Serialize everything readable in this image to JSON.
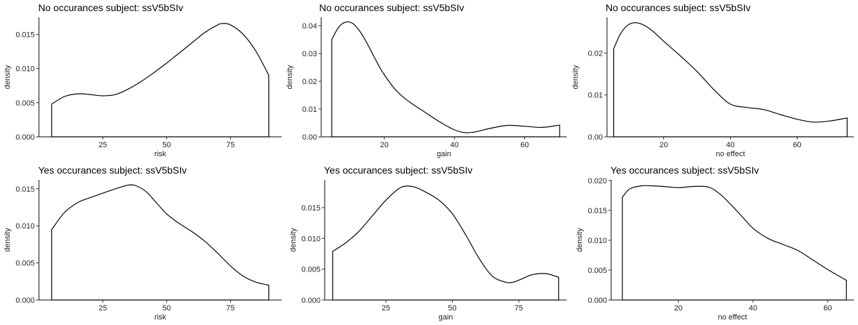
{
  "chart_data": [
    {
      "type": "area",
      "title": "No occurances subject:  ssV5bSIv",
      "xlabel": "risk",
      "ylabel": "density",
      "xlim": [
        0,
        95
      ],
      "ylim": [
        0,
        0.0175
      ],
      "xticks": [
        25,
        50,
        75
      ],
      "xtick_labels": [
        "25",
        "50",
        "75"
      ],
      "yticks": [
        0,
        0.005,
        0.01,
        0.015
      ],
      "ytick_labels": [
        "0.000",
        "0.005",
        "0.010",
        "0.015"
      ],
      "x": [
        5,
        10,
        15,
        20,
        25,
        30,
        35,
        40,
        45,
        50,
        55,
        60,
        65,
        70,
        72,
        75,
        80,
        85,
        90
      ],
      "y": [
        0.0048,
        0.0059,
        0.0063,
        0.0062,
        0.006,
        0.0062,
        0.007,
        0.0081,
        0.0094,
        0.0108,
        0.0123,
        0.0138,
        0.0153,
        0.0164,
        0.0166,
        0.0164,
        0.015,
        0.0125,
        0.009
      ],
      "grid": false,
      "legend": "none"
    },
    {
      "type": "area",
      "title": "No occurances subject:  ssV5bSIv",
      "xlabel": "gain",
      "ylabel": "density",
      "xlim": [
        2,
        72
      ],
      "ylim": [
        0,
        0.043
      ],
      "xticks": [
        20,
        40,
        60
      ],
      "xtick_labels": [
        "20",
        "40",
        "60"
      ],
      "yticks": [
        0,
        0.01,
        0.02,
        0.03,
        0.04
      ],
      "ytick_labels": [
        "0.00",
        "0.01",
        "0.02",
        "0.03",
        "0.04"
      ],
      "x": [
        5,
        7,
        9,
        11,
        13,
        15,
        17,
        19,
        21,
        23,
        25,
        28,
        32,
        36,
        40,
        43,
        46,
        50,
        55,
        60,
        65,
        70
      ],
      "y": [
        0.035,
        0.0395,
        0.0413,
        0.0408,
        0.038,
        0.0338,
        0.029,
        0.0243,
        0.0205,
        0.0172,
        0.0147,
        0.0118,
        0.0085,
        0.0052,
        0.0025,
        0.0015,
        0.0018,
        0.003,
        0.0041,
        0.0038,
        0.0034,
        0.0042
      ],
      "grid": false,
      "legend": "none"
    },
    {
      "type": "area",
      "title": "No occurances subject:  ssV5bSIv",
      "xlabel": "no effect",
      "ylabel": "density",
      "xlim": [
        3,
        77
      ],
      "ylim": [
        0,
        0.0285
      ],
      "xticks": [
        20,
        40,
        60
      ],
      "xtick_labels": [
        "20",
        "40",
        "60"
      ],
      "yticks": [
        0,
        0.01,
        0.02
      ],
      "ytick_labels": [
        "0.00",
        "0.01",
        "0.02"
      ],
      "x": [
        5,
        7,
        9,
        11,
        13,
        15,
        17,
        20,
        25,
        30,
        35,
        40,
        45,
        50,
        55,
        60,
        65,
        70,
        75
      ],
      "y": [
        0.021,
        0.0245,
        0.0265,
        0.0272,
        0.027,
        0.0262,
        0.025,
        0.0228,
        0.0193,
        0.0156,
        0.0113,
        0.0078,
        0.007,
        0.0065,
        0.0053,
        0.0042,
        0.0035,
        0.0038,
        0.0045
      ],
      "grid": false,
      "legend": "none"
    },
    {
      "type": "area",
      "title": "Yes occurances subject:  ssV5bSIv",
      "xlabel": "risk",
      "ylabel": "density",
      "xlim": [
        0,
        95
      ],
      "ylim": [
        0,
        0.0162
      ],
      "xticks": [
        25,
        50,
        75
      ],
      "xtick_labels": [
        "25",
        "50",
        "75"
      ],
      "yticks": [
        0,
        0.005,
        0.01,
        0.015
      ],
      "ytick_labels": [
        "0.000",
        "0.005",
        "0.010",
        "0.015"
      ],
      "x": [
        5,
        10,
        15,
        20,
        25,
        30,
        35,
        38,
        42,
        46,
        50,
        55,
        60,
        65,
        70,
        75,
        80,
        85,
        90
      ],
      "y": [
        0.0095,
        0.0118,
        0.0131,
        0.0138,
        0.0144,
        0.015,
        0.0155,
        0.0154,
        0.0146,
        0.0131,
        0.0116,
        0.0103,
        0.0092,
        0.0079,
        0.0063,
        0.0046,
        0.0032,
        0.0024,
        0.002
      ],
      "grid": false,
      "legend": "none"
    },
    {
      "type": "area",
      "title": "Yes occurances subject:  ssV5bSIv",
      "xlabel": "gain",
      "ylabel": "density",
      "xlim": [
        2,
        93
      ],
      "ylim": [
        0,
        0.0195
      ],
      "xticks": [
        25,
        50,
        75
      ],
      "xtick_labels": [
        "25",
        "50",
        "75"
      ],
      "yticks": [
        0,
        0.005,
        0.01,
        0.015
      ],
      "ytick_labels": [
        "0.000",
        "0.005",
        "0.010",
        "0.015"
      ],
      "x": [
        5,
        10,
        15,
        20,
        25,
        30,
        33,
        36,
        40,
        45,
        50,
        55,
        60,
        65,
        70,
        73,
        76,
        80,
        85,
        90
      ],
      "y": [
        0.0079,
        0.0093,
        0.0112,
        0.0137,
        0.0162,
        0.0181,
        0.0185,
        0.0183,
        0.0175,
        0.0162,
        0.014,
        0.0106,
        0.0068,
        0.0039,
        0.0029,
        0.0029,
        0.0034,
        0.0041,
        0.0043,
        0.0037
      ],
      "grid": false,
      "legend": "none"
    },
    {
      "type": "area",
      "title": "Yes occurances subject:  ssV5bSIv",
      "xlabel": "no effect",
      "ylabel": "density",
      "xlim": [
        2,
        67
      ],
      "ylim": [
        0,
        0.0201
      ],
      "xticks": [
        20,
        40,
        60
      ],
      "xtick_labels": [
        "20",
        "40",
        "60"
      ],
      "yticks": [
        0,
        0.005,
        0.01,
        0.015,
        0.02
      ],
      "ytick_labels": [
        "0.000",
        "0.005",
        "0.010",
        "0.015",
        "0.020"
      ],
      "x": [
        5,
        7,
        10,
        13,
        16,
        20,
        24,
        28,
        31,
        34,
        37,
        40,
        44,
        48,
        52,
        56,
        60,
        65
      ],
      "y": [
        0.0172,
        0.0186,
        0.0191,
        0.0191,
        0.019,
        0.0188,
        0.019,
        0.0189,
        0.0178,
        0.016,
        0.014,
        0.012,
        0.0103,
        0.0093,
        0.0083,
        0.0067,
        0.0051,
        0.0033
      ],
      "grid": false,
      "legend": "none"
    }
  ]
}
